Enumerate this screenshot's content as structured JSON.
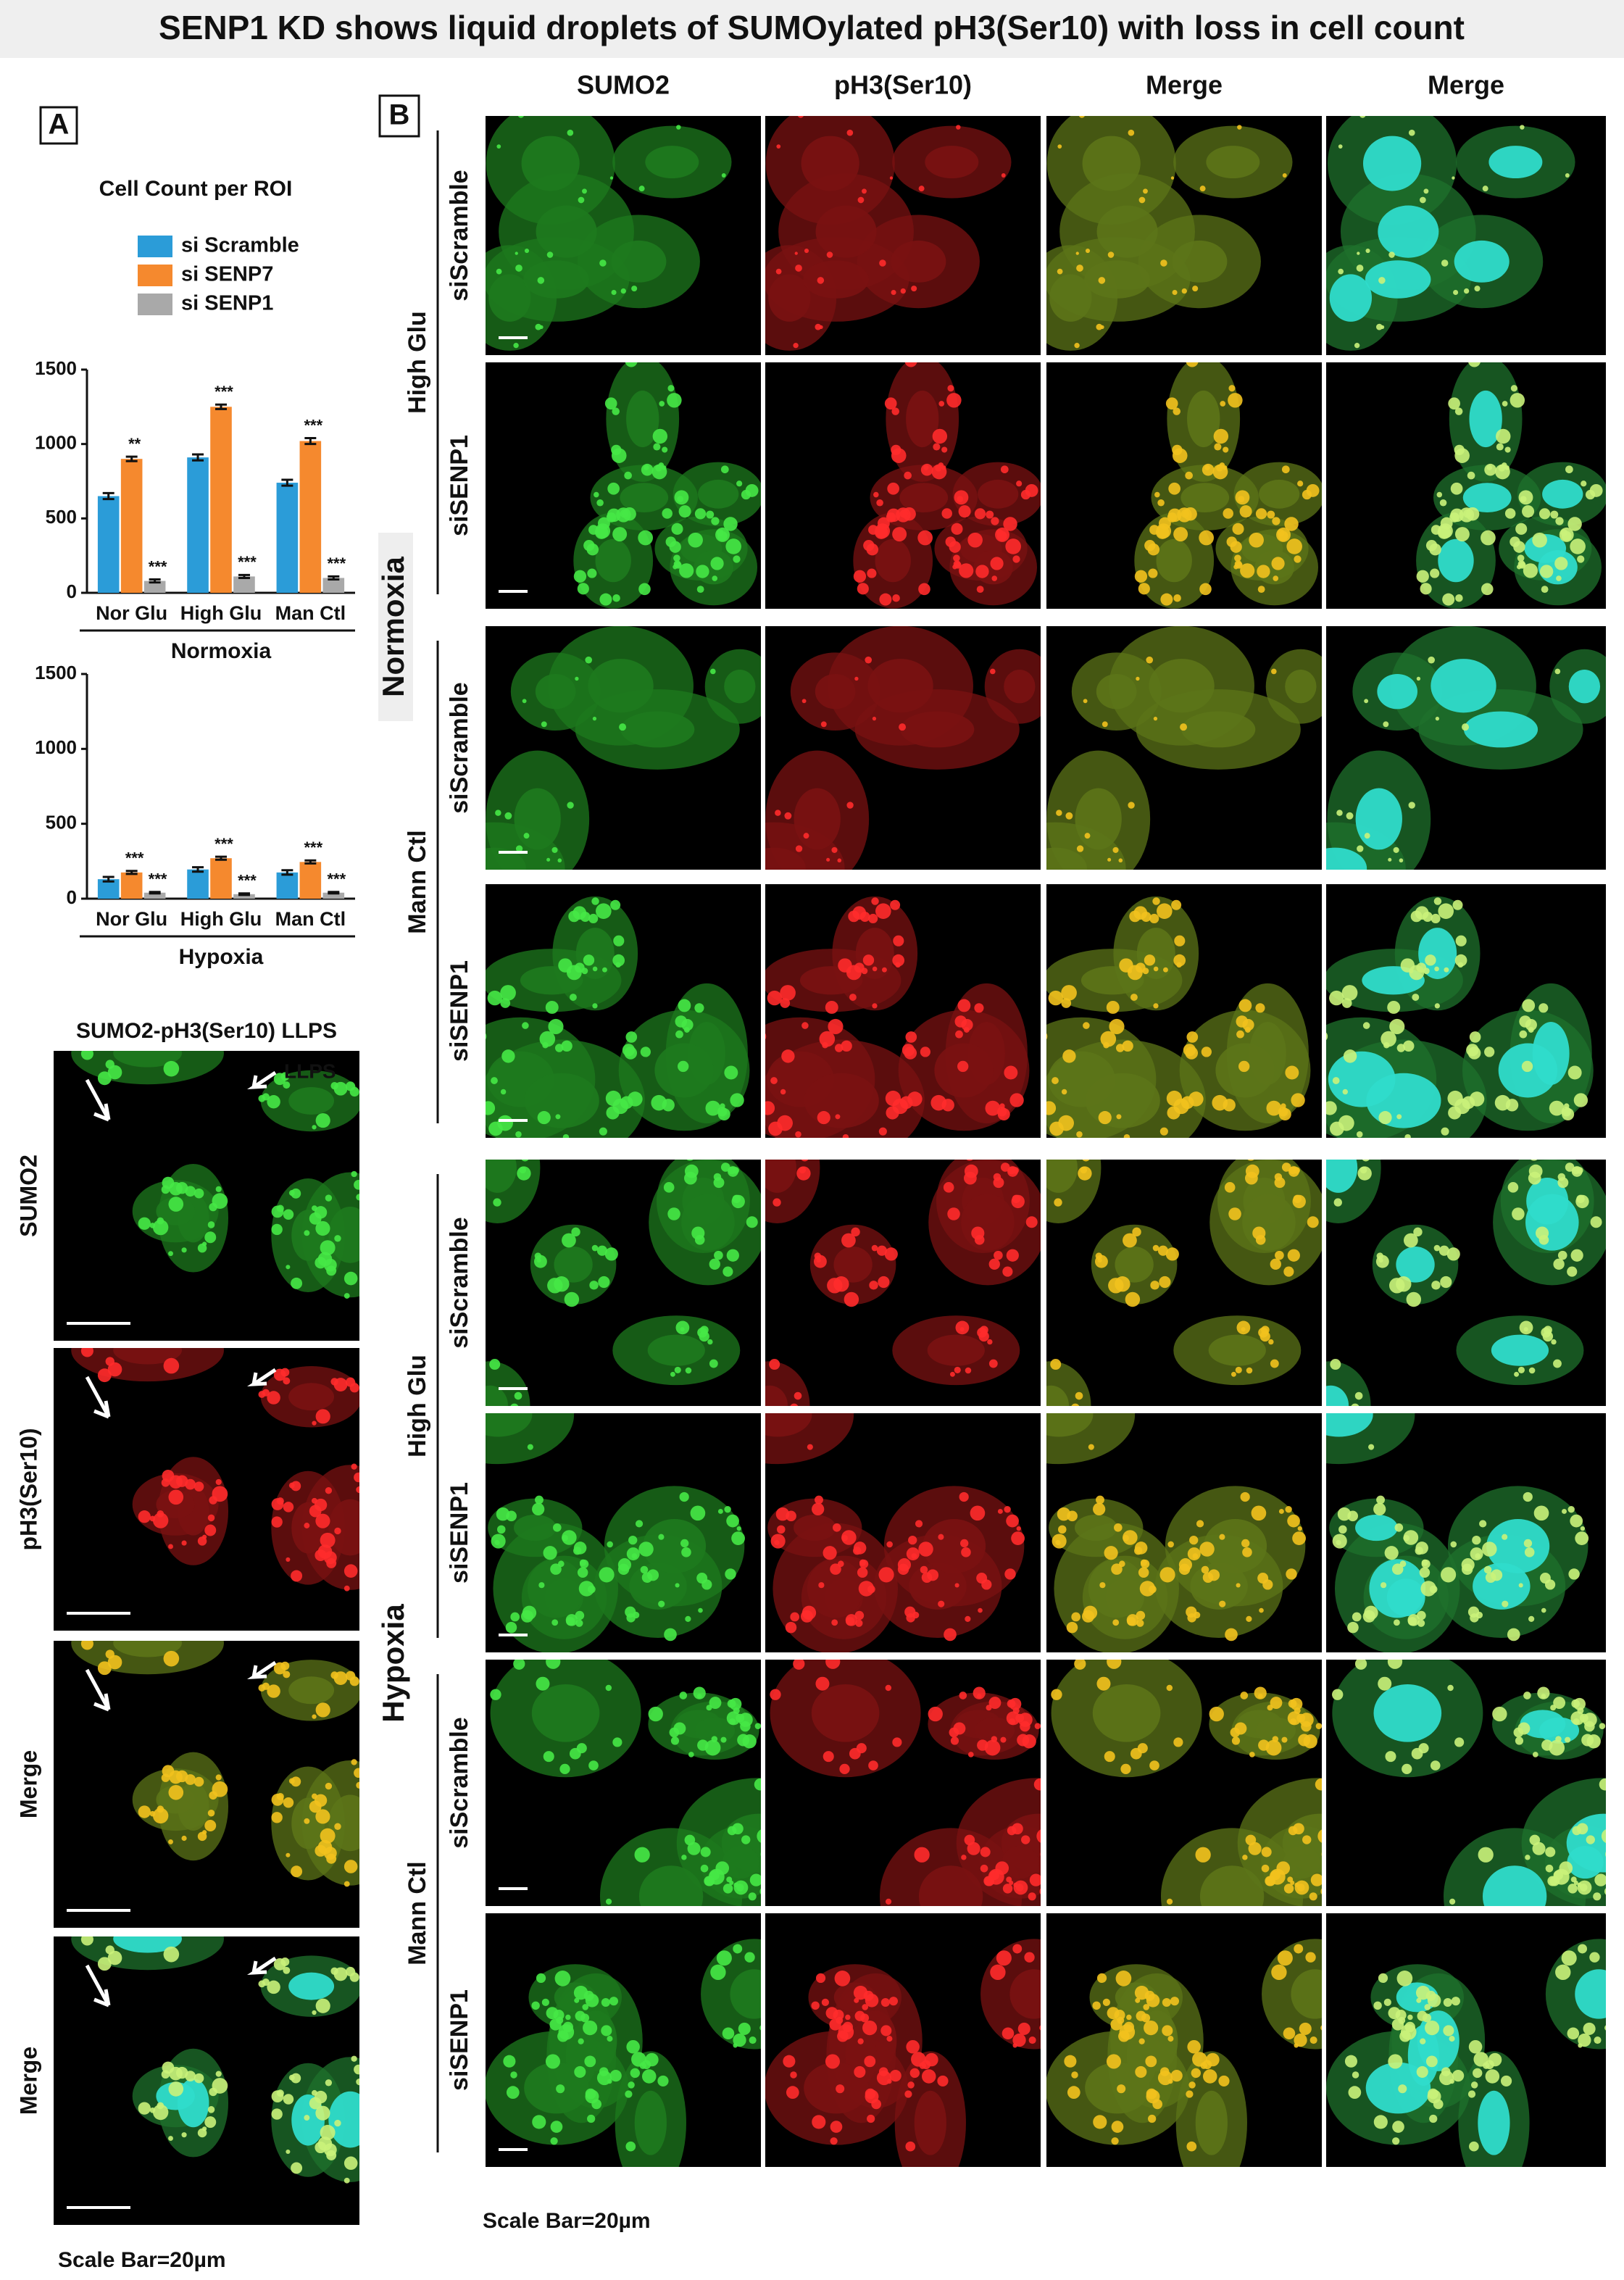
{
  "title": "SENP1 KD shows liquid droplets of SUMOylated pH3(Ser10) with loss in cell count",
  "panel_a": {
    "label": "A",
    "llps": {
      "title": "SUMO2-pH3(Ser10) LLPS",
      "rows": [
        {
          "text": "SUMO2",
          "color": "#1c9a1c"
        },
        {
          "text": "pH3(Ser10)",
          "color": "#e02020"
        },
        {
          "text": "Merge",
          "color": "#111111"
        },
        {
          "text": "Merge",
          "color": "#111111"
        }
      ],
      "arrow_label": "LLPS",
      "scale_bar": "Scale Bar=20µm"
    }
  },
  "chart_data": [
    {
      "type": "bar",
      "title": "Cell Count per ROI",
      "categories": [
        "Nor Glu",
        "High Glu",
        "Man Ctl"
      ],
      "group_label": "Normoxia",
      "series": [
        {
          "name": "si Scramble",
          "color": "#2b9cd8",
          "values": [
            650,
            910,
            740
          ],
          "errors": [
            20,
            20,
            20
          ]
        },
        {
          "name": "si SENP7",
          "color": "#f5892e",
          "values": [
            900,
            1250,
            1020
          ],
          "errors": [
            15,
            15,
            20
          ],
          "significance": [
            "**",
            "***",
            "***"
          ]
        },
        {
          "name": "si SENP1",
          "color": "#a9a9a9",
          "values": [
            80,
            110,
            100
          ],
          "errors": [
            10,
            10,
            10
          ],
          "significance": [
            "***",
            "***",
            "***"
          ]
        }
      ],
      "ylim": [
        0,
        1500
      ],
      "yticks": [
        0,
        500,
        1000,
        1500
      ]
    },
    {
      "type": "bar",
      "categories": [
        "Nor Glu",
        "High Glu",
        "Man Ctl"
      ],
      "group_label": "Hypoxia",
      "series": [
        {
          "color": "#2b9cd8",
          "values": [
            130,
            195,
            175
          ],
          "errors": [
            15,
            15,
            15
          ]
        },
        {
          "color": "#f5892e",
          "values": [
            175,
            270,
            245
          ],
          "errors": [
            10,
            10,
            10
          ],
          "significance": [
            "***",
            "***",
            "***"
          ]
        },
        {
          "color": "#a9a9a9",
          "values": [
            40,
            30,
            40
          ],
          "errors": [
            5,
            5,
            5
          ],
          "significance": [
            "***",
            "***",
            "***"
          ]
        }
      ],
      "ylim": [
        0,
        1500
      ],
      "yticks": [
        0,
        500,
        1000,
        1500
      ]
    }
  ],
  "panel_b": {
    "label": "B",
    "columns": [
      {
        "text": "SUMO2",
        "color": "#1c9a1c"
      },
      {
        "text": "pH3(Ser10)",
        "color": "#e02020"
      },
      {
        "text": "Merge",
        "color": "#111111"
      },
      {
        "text": "Merge",
        "color": "#111111"
      }
    ],
    "conditions": [
      {
        "name": "Normoxia",
        "groups": [
          {
            "name": "High Glu",
            "rows": [
              "siScramble",
              "siSENP1"
            ]
          },
          {
            "name": "Mann Ctl",
            "rows": [
              "siScramble",
              "siSENP1"
            ]
          }
        ]
      },
      {
        "name": "Hypoxia",
        "groups": [
          {
            "name": "High Glu",
            "rows": [
              "siScramble",
              "siSENP1"
            ]
          },
          {
            "name": "Mann Ctl",
            "rows": [
              "siScramble",
              "siSENP1"
            ]
          }
        ]
      }
    ],
    "scale_bar": "Scale Bar=20µm"
  }
}
